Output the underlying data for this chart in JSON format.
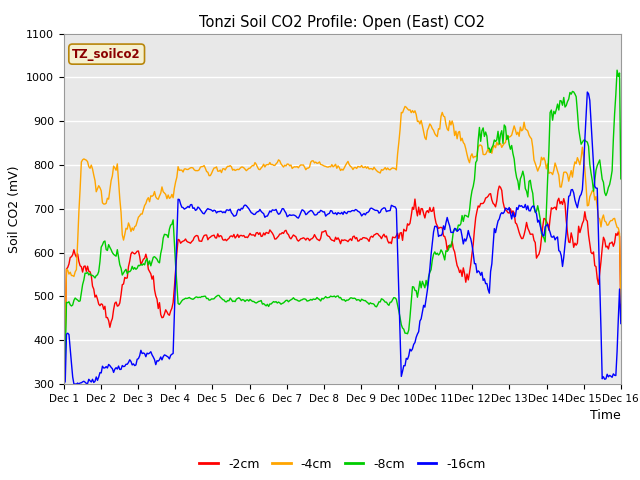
{
  "title": "Tonzi Soil CO2 Profile: Open (East) CO2",
  "ylabel": "Soil CO2 (mV)",
  "xlabel": "Time",
  "legend_label": "TZ_soilco2",
  "ylim": [
    300,
    1100
  ],
  "yticks": [
    300,
    400,
    500,
    600,
    700,
    800,
    900,
    1000,
    1100
  ],
  "xtick_labels": [
    "Dec 1",
    "Dec 2",
    "Dec 3",
    "Dec 4",
    "Dec 5",
    "Dec 6",
    "Dec 7",
    "Dec 8",
    "Dec 9",
    "Dec 10",
    "Dec 11",
    "Dec 12",
    "Dec 13",
    "Dec 14",
    "Dec 15",
    "Dec 16"
  ],
  "series_labels": [
    "-2cm",
    "-4cm",
    "-8cm",
    "-16cm"
  ],
  "series_colors": [
    "#ff0000",
    "#ffa500",
    "#00cc00",
    "#0000ff"
  ],
  "line_width": 1.0,
  "plot_bg_color": "#e8e8e8",
  "fig_bg_color": "#ffffff"
}
